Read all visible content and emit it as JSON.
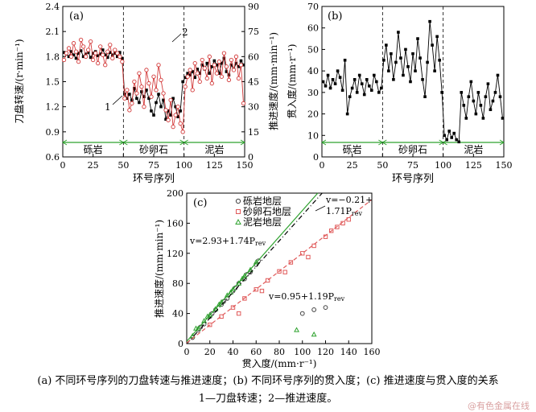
{
  "captions": {
    "line1": "(a) 不同环号序列的刀盘转速与推进速度；(b) 不同环号序列的贯入度；(c) 推进速度与贯入度的关系",
    "line2": "1—刀盘转速；2—推进速度。"
  },
  "watermark": "@有色金属在线",
  "chart_data": [
    {
      "panel": "(a)",
      "type": "line",
      "xlabel": "环号序列",
      "ylabel": "刀盘转速/(r·min⁻¹)",
      "y2label": "推进速度/(mm·min⁻¹)",
      "xlim": [
        0,
        150
      ],
      "ylim": [
        0.6,
        2.4
      ],
      "y2lim": [
        0,
        90
      ],
      "xticks": [
        0,
        25,
        50,
        75,
        100,
        125,
        150
      ],
      "yticks": [
        "0.6",
        "0.9",
        "1.2",
        "1.5",
        "1.8",
        "2.1",
        "2.4"
      ],
      "y2ticks": [
        0,
        15,
        30,
        45,
        60,
        75,
        90
      ],
      "annotations": [
        "1",
        "2"
      ],
      "strata": [
        {
          "label": "砾岩",
          "from": 0,
          "to": 50
        },
        {
          "label": "砂卵石",
          "from": 50,
          "to": 100
        },
        {
          "label": "泥岩",
          "from": 100,
          "to": 150
        }
      ],
      "series": [
        {
          "color": "#000000",
          "axis": "left",
          "x": [
            1,
            3,
            5,
            7,
            9,
            11,
            13,
            15,
            17,
            19,
            21,
            23,
            25,
            27,
            29,
            31,
            33,
            35,
            37,
            39,
            41,
            43,
            45,
            47,
            49,
            51,
            53,
            55,
            57,
            59,
            61,
            63,
            65,
            67,
            69,
            71,
            73,
            75,
            77,
            79,
            81,
            83,
            85,
            87,
            89,
            91,
            93,
            95,
            97,
            99,
            101,
            103,
            105,
            107,
            109,
            111,
            113,
            115,
            117,
            119,
            121,
            123,
            125,
            127,
            129,
            131,
            133,
            135,
            137,
            139,
            141,
            143,
            145,
            147,
            149
          ],
          "values": [
            1.85,
            1.83,
            1.8,
            1.86,
            1.82,
            1.78,
            1.84,
            1.87,
            1.8,
            1.83,
            1.85,
            1.79,
            1.84,
            1.86,
            1.81,
            1.83,
            1.88,
            1.82,
            1.79,
            1.85,
            1.82,
            1.84,
            1.8,
            1.85,
            1.78,
            1.35,
            1.3,
            1.35,
            1.28,
            1.42,
            1.3,
            1.25,
            1.38,
            1.32,
            1.4,
            1.3,
            1.15,
            1.1,
            1.25,
            1.35,
            1.2,
            1.28,
            1.05,
            1.15,
            1.1,
            1.3,
            1.2,
            1.08,
            1.15,
            1.5,
            1.55,
            1.6,
            1.58,
            1.62,
            1.55,
            1.65,
            1.6,
            1.7,
            1.65,
            1.72,
            1.6,
            1.68,
            1.75,
            1.7,
            1.6,
            1.72,
            1.78,
            1.62,
            1.58,
            1.7,
            1.65,
            1.72,
            1.68,
            1.75,
            1.7
          ]
        },
        {
          "color": "#d33a3a",
          "axis": "right",
          "x": [
            1,
            3,
            5,
            7,
            9,
            11,
            13,
            15,
            17,
            19,
            21,
            23,
            25,
            27,
            29,
            31,
            33,
            35,
            37,
            39,
            41,
            43,
            45,
            47,
            49,
            51,
            53,
            55,
            57,
            59,
            61,
            63,
            65,
            67,
            69,
            71,
            73,
            75,
            77,
            79,
            81,
            83,
            85,
            87,
            89,
            91,
            93,
            95,
            97,
            99,
            101,
            103,
            105,
            107,
            109,
            111,
            113,
            115,
            117,
            119,
            121,
            123,
            125,
            127,
            129,
            131,
            133,
            135,
            137,
            139,
            141,
            143,
            145,
            147,
            149
          ],
          "values": [
            58,
            62,
            65,
            60,
            68,
            63,
            57,
            70,
            66,
            60,
            64,
            69,
            58,
            62,
            56,
            66,
            61,
            55,
            63,
            67,
            59,
            64,
            62,
            60,
            57,
            35,
            40,
            28,
            32,
            45,
            38,
            50,
            42,
            30,
            52,
            44,
            36,
            48,
            40,
            55,
            46,
            38,
            28,
            22,
            34,
            18,
            25,
            30,
            20,
            15,
            42,
            48,
            52,
            40,
            56,
            50,
            45,
            58,
            53,
            47,
            60,
            44,
            55,
            50,
            57,
            48,
            62,
            54,
            46,
            58,
            52,
            60,
            47,
            55,
            32
          ]
        }
      ]
    },
    {
      "panel": "(b)",
      "type": "line",
      "xlabel": "环号序列",
      "ylabel": "贯入度/(mm·r⁻¹)",
      "xlim": [
        0,
        150
      ],
      "ylim": [
        0,
        70
      ],
      "xticks": [
        0,
        25,
        50,
        75,
        100,
        125,
        150
      ],
      "yticks": [
        0,
        10,
        20,
        30,
        40,
        50,
        60,
        70
      ],
      "strata": [
        {
          "label": "砾岩",
          "from": 0,
          "to": 50
        },
        {
          "label": "砂卵石",
          "from": 50,
          "to": 100
        },
        {
          "label": "泥岩",
          "from": 100,
          "to": 150
        }
      ],
      "series": [
        {
          "color": "#000000",
          "x": [
            1,
            3,
            5,
            7,
            9,
            11,
            13,
            15,
            17,
            19,
            21,
            23,
            25,
            27,
            29,
            31,
            33,
            35,
            37,
            39,
            41,
            43,
            45,
            47,
            49,
            51,
            53,
            55,
            57,
            59,
            61,
            63,
            65,
            67,
            69,
            71,
            73,
            75,
            77,
            79,
            81,
            83,
            85,
            87,
            89,
            91,
            93,
            95,
            97,
            99,
            101,
            103,
            105,
            107,
            109,
            111,
            113,
            115,
            117,
            119,
            121,
            123,
            125,
            127,
            129,
            131,
            133,
            135,
            137,
            139,
            141,
            143,
            145,
            147,
            149
          ],
          "values": [
            35,
            33,
            38,
            32,
            36,
            34,
            40,
            37,
            31,
            45,
            20,
            28,
            32,
            36,
            30,
            38,
            34,
            29,
            36,
            33,
            31,
            38,
            35,
            30,
            32,
            45,
            52,
            40,
            48,
            36,
            44,
            58,
            46,
            38,
            50,
            42,
            35,
            48,
            40,
            55,
            46,
            36,
            28,
            44,
            63,
            52,
            40,
            56,
            45,
            30,
            10,
            8,
            12,
            9,
            11,
            8,
            7,
            30,
            24,
            18,
            28,
            35,
            26,
            20,
            30,
            24,
            18,
            28,
            34,
            22,
            26,
            30,
            38,
            28,
            18
          ]
        }
      ]
    },
    {
      "panel": "(c)",
      "type": "scatter",
      "xlabel": "贯入度/(mm·r⁻¹)",
      "ylabel": "推进速度/(mm·min⁻¹)",
      "xlim": [
        0,
        160
      ],
      "ylim": [
        0,
        200
      ],
      "xticks": [
        0,
        20,
        40,
        60,
        80,
        100,
        120,
        140,
        160
      ],
      "yticks": [
        0,
        40,
        80,
        120,
        160,
        200
      ],
      "legend_position": "top-left",
      "series": [
        {
          "name": "砾岩地层",
          "color": "#444444",
          "marker": "circle",
          "fit": {
            "intercept": -0.21,
            "slope": 1.71,
            "label": "v=−0.21+1.71P",
            "label_sub": "rev"
          },
          "x": [
            5,
            10,
            15,
            20,
            25,
            30,
            35,
            40,
            45,
            50,
            55,
            60,
            12,
            22,
            32,
            42,
            52,
            62,
            100,
            110,
            120
          ],
          "values": [
            8,
            18,
            26,
            36,
            45,
            52,
            60,
            70,
            80,
            86,
            95,
            105,
            22,
            40,
            56,
            74,
            92,
            110,
            40,
            45,
            48
          ]
        },
        {
          "name": "砂卵石地层",
          "color": "#e05a5a",
          "marker": "square",
          "fit": {
            "intercept": 0.95,
            "slope": 1.19,
            "label": "v=0.95+1.19P",
            "label_sub": "rev"
          },
          "x": [
            20,
            30,
            40,
            50,
            60,
            70,
            80,
            90,
            100,
            110,
            120,
            130,
            135,
            45,
            65,
            85,
            105,
            125,
            140
          ],
          "values": [
            25,
            36,
            48,
            60,
            72,
            84,
            96,
            108,
            120,
            130,
            142,
            155,
            160,
            40,
            70,
            95,
            115,
            150,
            165
          ]
        },
        {
          "name": "泥岩地层",
          "color": "#2ea22e",
          "marker": "triangle",
          "fit": {
            "intercept": 2.93,
            "slope": 1.74,
            "label": "v=2.93+1.74P",
            "label_sub": "rev"
          },
          "x": [
            5,
            10,
            15,
            20,
            25,
            30,
            35,
            40,
            45,
            50,
            55,
            60,
            8,
            18,
            28,
            38,
            48,
            95,
            110
          ],
          "values": [
            10,
            20,
            30,
            38,
            46,
            55,
            64,
            72,
            80,
            90,
            98,
            108,
            20,
            36,
            52,
            68,
            86,
            18,
            12
          ]
        }
      ]
    }
  ]
}
